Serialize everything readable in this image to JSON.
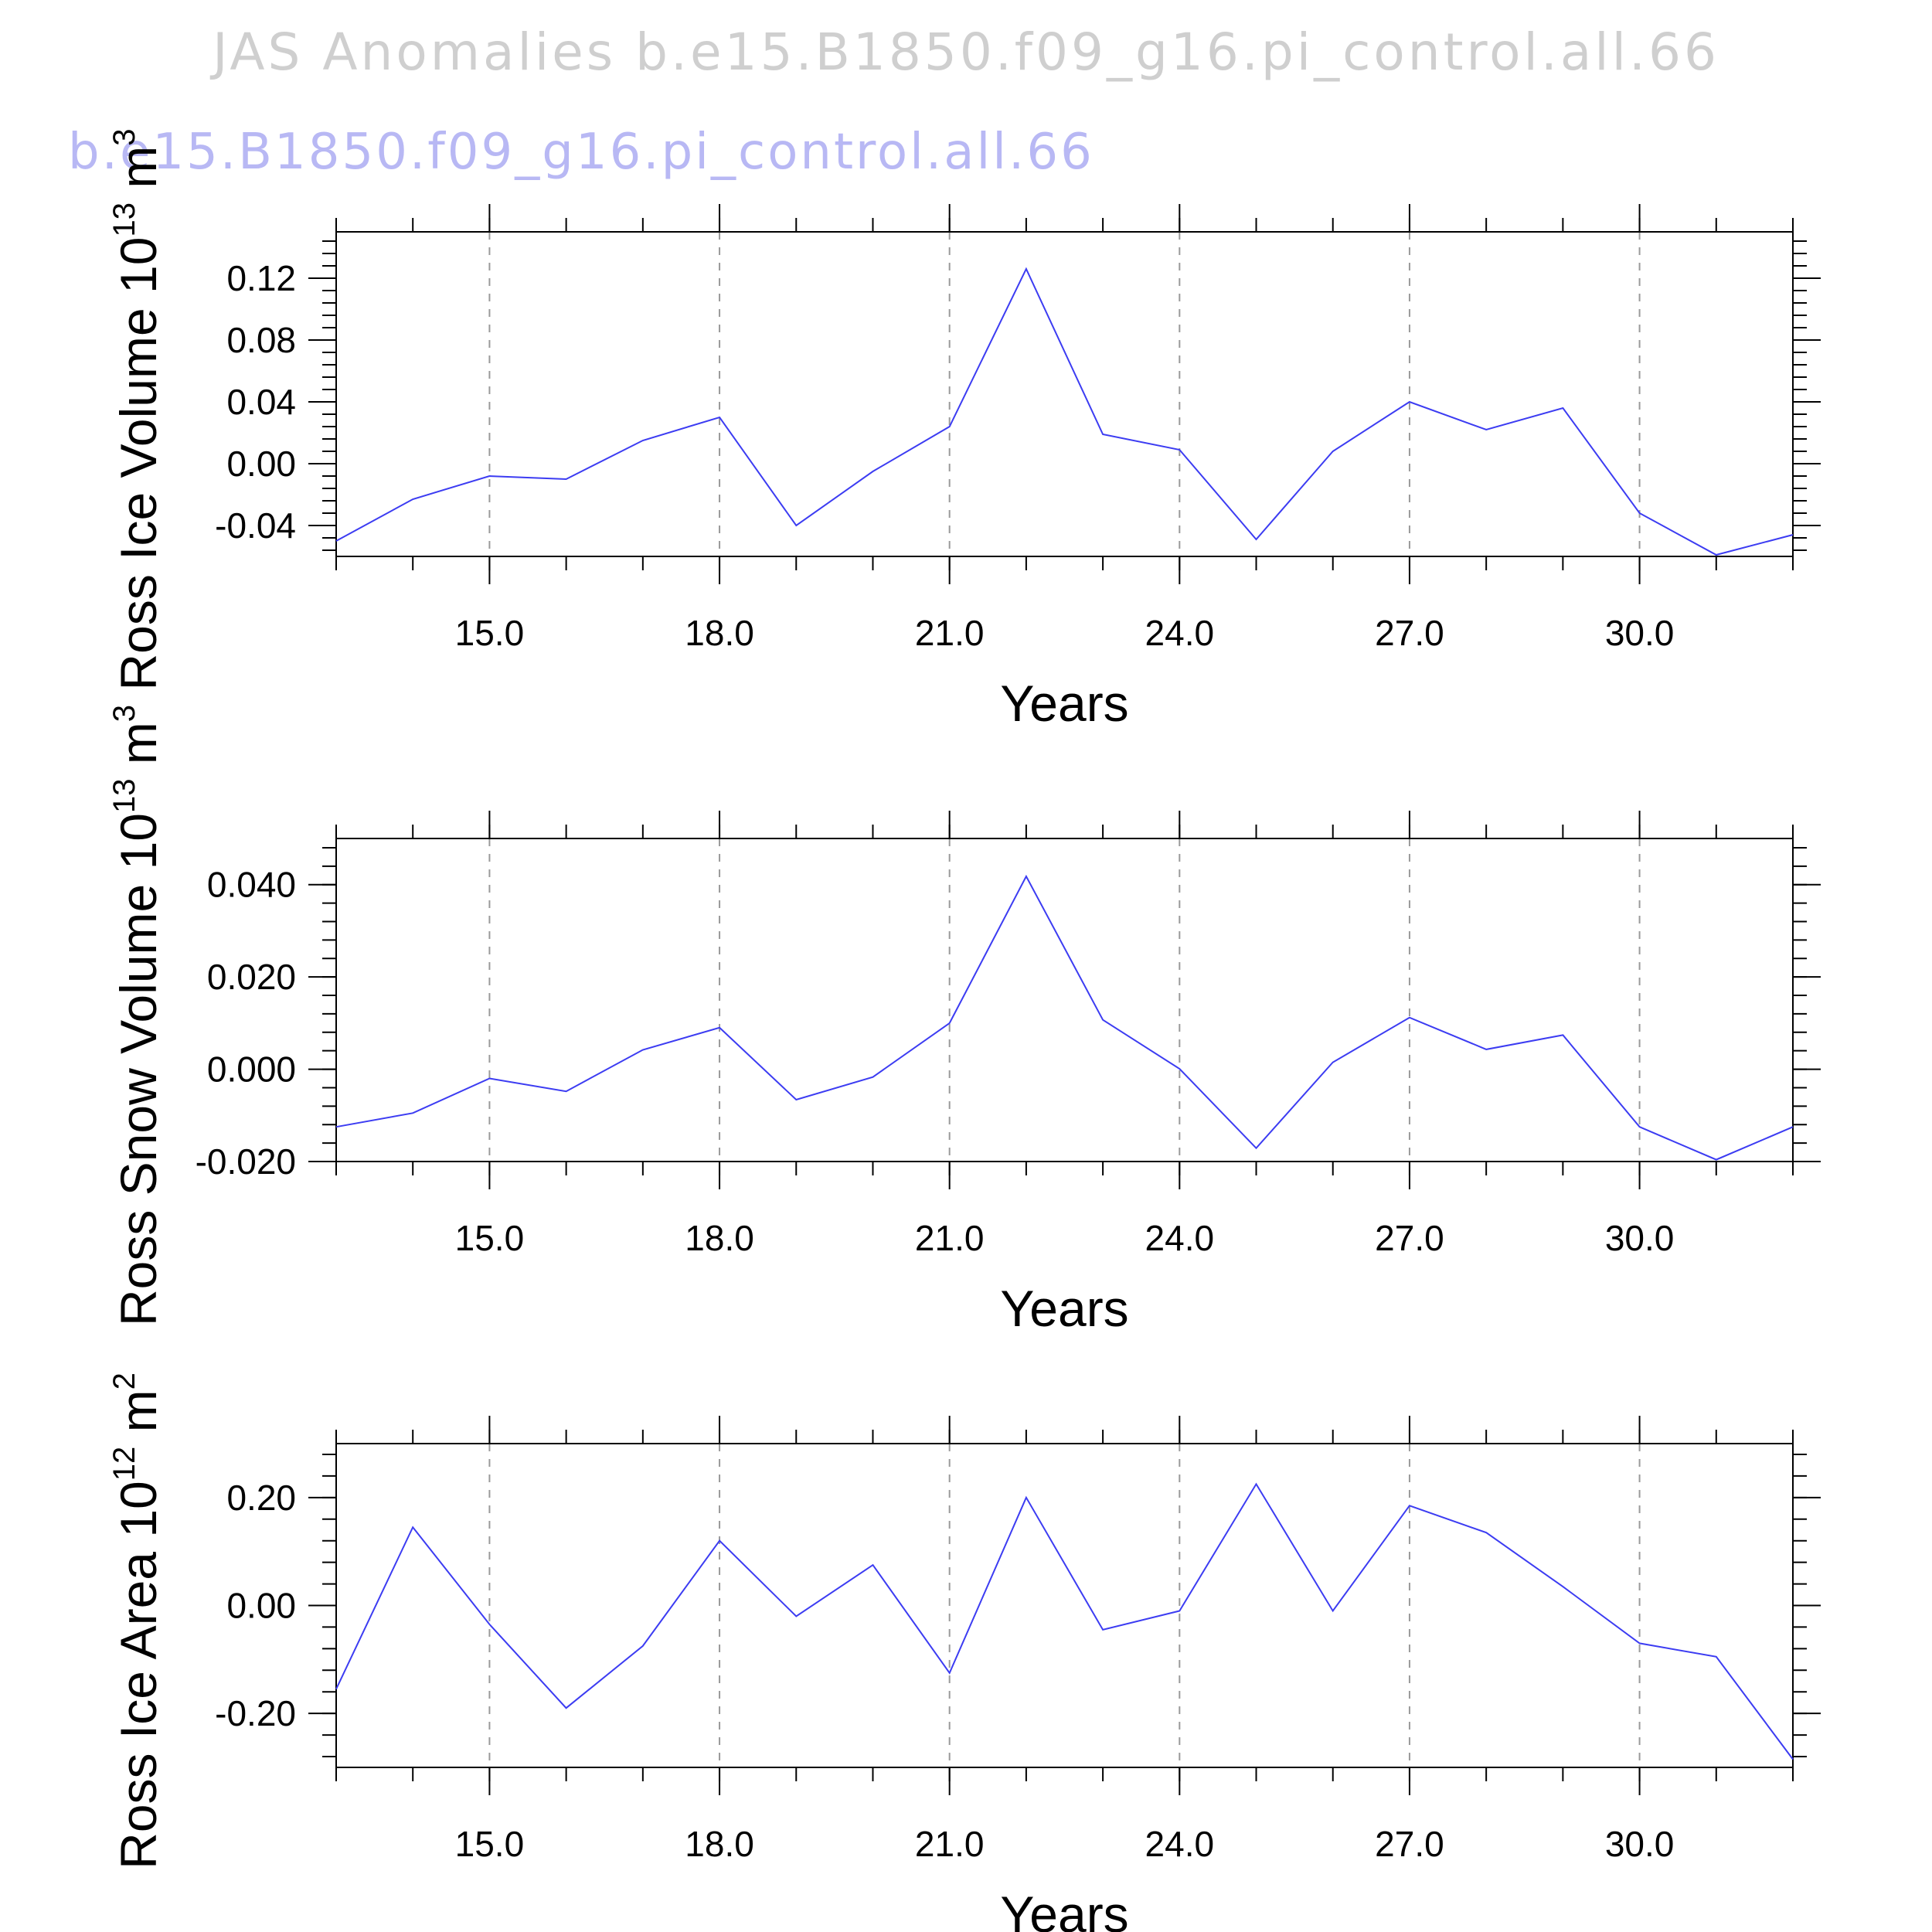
{
  "title": "JAS Anomalies b.e15.B1850.f09_g16.pi_control.all.66",
  "case_label": "b.e15.B1850.f09_g16.pi_control.all.66",
  "colors": {
    "series": "#3c3cf2",
    "title": "#cfcfcf",
    "case_label": "#b8b8f4",
    "grid": "#9a9a9a"
  },
  "chart_data": [
    {
      "type": "line",
      "xlabel": "Years",
      "ylabel": "Ross Ice Volume 10",
      "ylabel_exp": "13",
      "ylabel_unit": " m",
      "ylabel_unit_exp": "3",
      "xlim": [
        13,
        32
      ],
      "ylim": [
        -0.06,
        0.15
      ],
      "x_ticks": [
        15,
        18,
        21,
        24,
        27,
        30
      ],
      "x_tick_labels": [
        "15.0",
        "18.0",
        "21.0",
        "24.0",
        "27.0",
        "30.0"
      ],
      "y_ticks": [
        -0.04,
        0.0,
        0.04,
        0.08,
        0.12
      ],
      "y_tick_labels": [
        "-0.04",
        "0.00",
        "0.04",
        "0.08",
        "0.12"
      ],
      "grid": "dashed vertical at major x ticks",
      "x": [
        13,
        14,
        15,
        16,
        17,
        18,
        19,
        20,
        21,
        22,
        23,
        24,
        25,
        26,
        27,
        28,
        29,
        30,
        31,
        32
      ],
      "values": [
        -0.05,
        -0.023,
        -0.008,
        -0.01,
        0.015,
        0.03,
        -0.04,
        -0.005,
        0.024,
        0.126,
        0.019,
        0.009,
        -0.049,
        0.008,
        0.04,
        0.022,
        0.036,
        -0.032,
        -0.059,
        -0.046
      ]
    },
    {
      "type": "line",
      "xlabel": "Years",
      "ylabel": "Ross Snow Volume 10",
      "ylabel_exp": "13",
      "ylabel_unit": " m",
      "ylabel_unit_exp": "3",
      "xlim": [
        13,
        32
      ],
      "ylim": [
        -0.02,
        0.05
      ],
      "x_ticks": [
        15,
        18,
        21,
        24,
        27,
        30
      ],
      "x_tick_labels": [
        "15.0",
        "18.0",
        "21.0",
        "24.0",
        "27.0",
        "30.0"
      ],
      "y_ticks": [
        -0.02,
        0.0,
        0.02,
        0.04
      ],
      "y_tick_labels": [
        "-0.020",
        "0.000",
        "0.020",
        "0.040"
      ],
      "grid": "dashed vertical at major x ticks",
      "x": [
        13,
        14,
        15,
        16,
        17,
        18,
        19,
        20,
        21,
        22,
        23,
        24,
        25,
        26,
        27,
        28,
        29,
        30,
        31,
        32
      ],
      "values": [
        -0.0125,
        -0.0095,
        -0.002,
        -0.0048,
        0.0042,
        0.009,
        -0.0066,
        -0.0017,
        0.01,
        0.0418,
        0.0107,
        0.0001,
        -0.0171,
        0.0015,
        0.0112,
        0.0043,
        0.0074,
        -0.0125,
        -0.0196,
        -0.0125
      ]
    },
    {
      "type": "line",
      "xlabel": "Years",
      "ylabel": "Ross Ice Area 10",
      "ylabel_exp": "12",
      "ylabel_unit": " m",
      "ylabel_unit_exp": "2",
      "xlim": [
        13,
        32
      ],
      "ylim": [
        -0.3,
        0.3
      ],
      "x_ticks": [
        15,
        18,
        21,
        24,
        27,
        30
      ],
      "x_tick_labels": [
        "15.0",
        "18.0",
        "21.0",
        "24.0",
        "27.0",
        "30.0"
      ],
      "y_ticks": [
        -0.2,
        0.0,
        0.2
      ],
      "y_tick_labels": [
        "-0.20",
        "0.00",
        "0.20"
      ],
      "grid": "dashed vertical at major x ticks",
      "x": [
        13,
        14,
        15,
        16,
        17,
        18,
        19,
        20,
        21,
        22,
        23,
        24,
        25,
        26,
        27,
        28,
        29,
        30,
        31,
        32
      ],
      "values": [
        -0.155,
        0.145,
        -0.035,
        -0.19,
        -0.075,
        0.12,
        -0.02,
        0.075,
        -0.125,
        0.2,
        -0.045,
        -0.01,
        0.225,
        -0.01,
        0.185,
        0.135,
        0.035,
        -0.07,
        -0.095,
        -0.285
      ]
    }
  ]
}
